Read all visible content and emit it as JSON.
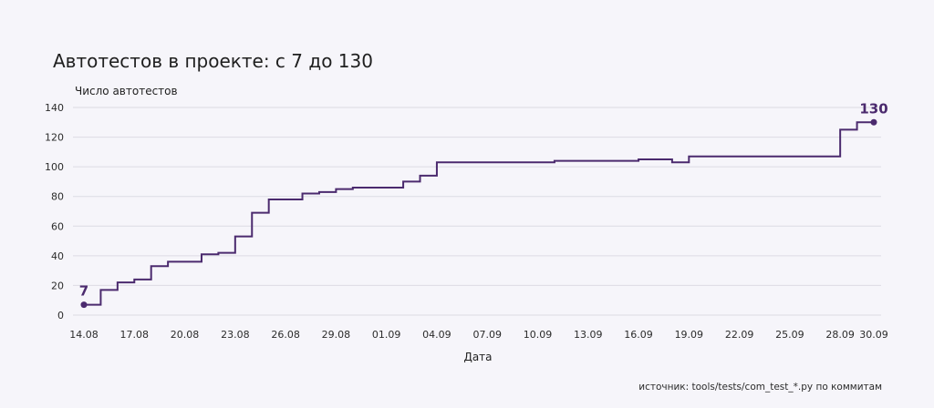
{
  "chart_data": {
    "type": "line",
    "step": true,
    "title": "Автотестов в проекте: с 7 до 130",
    "ylabel": "Число автотестов",
    "xlabel": "Дата",
    "source": "источник: tools/tests/com_test_*.py по коммитам",
    "ylim": [
      0,
      140
    ],
    "yticks": [
      0,
      20,
      40,
      60,
      80,
      100,
      120,
      140
    ],
    "xlim": [
      "2025-08-14",
      "2025-09-30"
    ],
    "xticks": [
      {
        "date": "2025-08-14",
        "label": "14.08"
      },
      {
        "date": "2025-08-17",
        "label": "17.08"
      },
      {
        "date": "2025-08-20",
        "label": "20.08"
      },
      {
        "date": "2025-08-23",
        "label": "23.08"
      },
      {
        "date": "2025-08-26",
        "label": "26.08"
      },
      {
        "date": "2025-08-29",
        "label": "29.08"
      },
      {
        "date": "2025-09-01",
        "label": "01.09"
      },
      {
        "date": "2025-09-04",
        "label": "04.09"
      },
      {
        "date": "2025-09-07",
        "label": "07.09"
      },
      {
        "date": "2025-09-10",
        "label": "10.09"
      },
      {
        "date": "2025-09-13",
        "label": "13.09"
      },
      {
        "date": "2025-09-16",
        "label": "16.09"
      },
      {
        "date": "2025-09-19",
        "label": "19.09"
      },
      {
        "date": "2025-09-22",
        "label": "22.09"
      },
      {
        "date": "2025-09-25",
        "label": "25.09"
      },
      {
        "date": "2025-09-28",
        "label": "28.09"
      },
      {
        "date": "2025-09-30",
        "label": "30.09"
      }
    ],
    "grid": true,
    "color": "#4b2a6e",
    "series": [
      {
        "points": [
          {
            "x": "2025-08-14",
            "y": 7
          },
          {
            "x": "2025-08-15",
            "y": 17
          },
          {
            "x": "2025-08-16",
            "y": 22
          },
          {
            "x": "2025-08-17",
            "y": 24
          },
          {
            "x": "2025-08-18",
            "y": 33
          },
          {
            "x": "2025-08-19",
            "y": 36
          },
          {
            "x": "2025-08-21",
            "y": 41
          },
          {
            "x": "2025-08-22",
            "y": 42
          },
          {
            "x": "2025-08-23",
            "y": 53
          },
          {
            "x": "2025-08-24",
            "y": 69
          },
          {
            "x": "2025-08-25",
            "y": 78
          },
          {
            "x": "2025-08-27",
            "y": 82
          },
          {
            "x": "2025-08-28",
            "y": 83
          },
          {
            "x": "2025-08-29",
            "y": 85
          },
          {
            "x": "2025-08-30",
            "y": 86
          },
          {
            "x": "2025-09-02",
            "y": 90
          },
          {
            "x": "2025-09-03",
            "y": 94
          },
          {
            "x": "2025-09-04",
            "y": 103
          },
          {
            "x": "2025-09-11",
            "y": 104
          },
          {
            "x": "2025-09-16",
            "y": 105
          },
          {
            "x": "2025-09-18",
            "y": 103
          },
          {
            "x": "2025-09-19",
            "y": 107
          },
          {
            "x": "2025-09-28",
            "y": 125
          },
          {
            "x": "2025-09-29",
            "y": 130
          },
          {
            "x": "2025-09-30",
            "y": 130
          }
        ]
      }
    ],
    "annotations": [
      {
        "x": "2025-08-14",
        "y": 7,
        "text": "7"
      },
      {
        "x": "2025-09-30",
        "y": 130,
        "text": "130"
      }
    ]
  }
}
